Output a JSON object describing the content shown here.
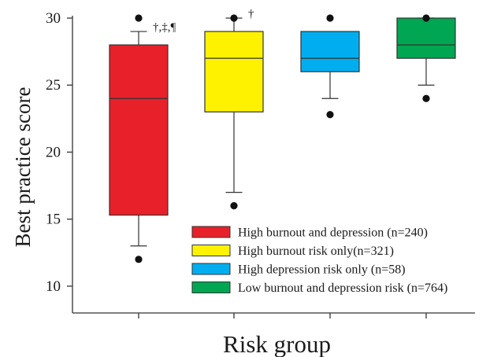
{
  "chart_data": {
    "type": "box",
    "xlabel": "Risk group",
    "ylabel": "Best practice score",
    "ylim": [
      8,
      30
    ],
    "yticks": [
      10,
      15,
      20,
      25,
      30
    ],
    "grid": false,
    "legend_position": "bottom-right",
    "series": [
      {
        "name": "High burnout and depression (n=240)",
        "color": "#e8202a",
        "min": 13,
        "q1": 15.3,
        "median": 24,
        "q3": 28,
        "max": 29,
        "outliers": [
          12,
          30
        ],
        "annotation": "†,‡,¶"
      },
      {
        "name": "High burnout risk only(n=321)",
        "color": "#fff200",
        "min": 17,
        "q1": 23,
        "median": 27,
        "q3": 29,
        "max": 30,
        "outliers": [
          16,
          30
        ],
        "annotation": "†"
      },
      {
        "name": "High depression risk only (n=58)",
        "color": "#00aeef",
        "min": 24,
        "q1": 26,
        "median": 27,
        "q3": 29,
        "max": 29,
        "outliers": [
          22.8,
          30
        ],
        "annotation": ""
      },
      {
        "name": "Low burnout and depression risk (n=764)",
        "color": "#00a651",
        "min": 25,
        "q1": 27,
        "median": 28,
        "q3": 30,
        "max": 30,
        "outliers": [
          24,
          30
        ],
        "annotation": ""
      }
    ]
  }
}
